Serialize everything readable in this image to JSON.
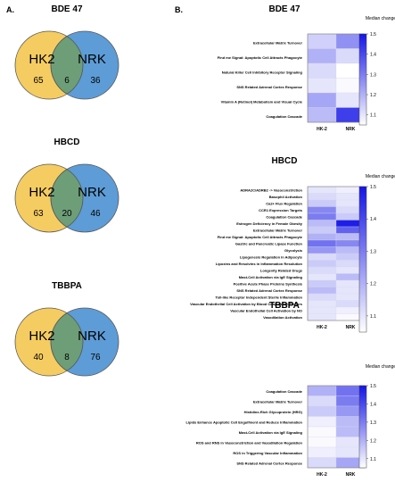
{
  "panel_a_label": "A.",
  "panel_b_label": "B.",
  "venns": [
    {
      "title": "BDE 47",
      "left_label": "HK2",
      "right_label": "NRK",
      "left_only": "65",
      "overlap": "6",
      "right_only": "36"
    },
    {
      "title": "HBCD",
      "left_label": "HK2",
      "right_label": "NRK",
      "left_only": "63",
      "overlap": "20",
      "right_only": "46"
    },
    {
      "title": "TBBPA",
      "left_label": "HK2",
      "right_label": "NRK",
      "left_only": "40",
      "overlap": "8",
      "right_only": "76"
    }
  ],
  "colors": {
    "hk2_circle": "#f5cc62",
    "nrk_circle": "#5d9cd6",
    "overlap": "#6d9e78",
    "heat_low": "#ffffff",
    "heat_high": "#1414e6"
  },
  "chart_data": [
    {
      "type": "heatmap",
      "title": "BDE 47",
      "columns": [
        "HK-2",
        "NRK"
      ],
      "rows": [
        "Extracellular Matrix Turnover",
        "Find me Signal: Apoptotic Cell Attracts Phagocyte",
        "Natural Killer Cell Inhibitory Receptor Signaling",
        "SNS Related Adrenal Cortex Response",
        "Vitamin A (Retinol) Metabolism and Visual Cycle",
        "Coagulation Cascade"
      ],
      "values": [
        [
          1.14,
          1.26
        ],
        [
          1.2,
          1.12
        ],
        [
          1.12,
          1.05
        ],
        [
          1.1,
          1.06
        ],
        [
          1.22,
          1.1
        ],
        [
          1.18,
          1.42
        ]
      ],
      "colorbar_label": "Median change",
      "colorbar_ticks": [
        "1.5",
        "1.4",
        "1.3",
        "1.2",
        "1.1"
      ],
      "range": [
        1.05,
        1.5
      ]
    },
    {
      "type": "heatmap",
      "title": "HBCD",
      "columns": [
        "HK-2",
        "NRK"
      ],
      "rows": [
        "ADRA2C/ADRB2 -> Vasoconstriction",
        "Basophil Activation",
        "Ca2+ Flux Regulation",
        "CCR1 Expression Targets",
        "Coagulation Cascade",
        "Estrogen Deficiency in Female Obesity",
        "Extracellular Matrix Turnover",
        "Find me Signal: Apoptotic Cell Attracts Phagocyte",
        "Gastric and Pancreatic Lipase Function",
        "Glycolysis",
        "Lipogenesis Regulation in Adipocyte",
        "Lipoxins and Resolvins in Inflammation Resolution",
        "Longevity Related Drugs",
        "Mast-Cell Activation via IgE Signaling",
        "Positive Acute Phase Proteins Synthesis",
        "SNS Related Adrenal Cortex Response",
        "Toll-like Receptor Independent Sterile Inflammation",
        "Vascular Endothelial Cell Activation by Blood Coagulation Factors",
        "Vascular Endothelial Cell Activation by NO",
        "Vasodilation Activation"
      ],
      "values": [
        [
          1.1,
          1.08
        ],
        [
          1.12,
          1.1
        ],
        [
          1.15,
          1.1
        ],
        [
          1.28,
          1.12
        ],
        [
          1.3,
          1.15
        ],
        [
          1.18,
          1.48
        ],
        [
          1.15,
          1.35
        ],
        [
          1.2,
          1.18
        ],
        [
          1.32,
          1.28
        ],
        [
          1.25,
          1.18
        ],
        [
          1.12,
          1.15
        ],
        [
          1.15,
          1.12
        ],
        [
          1.12,
          1.1
        ],
        [
          1.1,
          1.18
        ],
        [
          1.15,
          1.1
        ],
        [
          1.18,
          1.1
        ],
        [
          1.12,
          1.1
        ],
        [
          1.1,
          1.12
        ],
        [
          1.1,
          1.08
        ],
        [
          1.1,
          1.06
        ]
      ],
      "colorbar_label": "Median change",
      "colorbar_ticks": [
        "1.5",
        "1.4",
        "1.3",
        "1.2",
        "1.1"
      ],
      "range": [
        1.05,
        1.5
      ]
    },
    {
      "type": "heatmap",
      "title": "TBBPA",
      "columns": [
        "HK-2",
        "NRK"
      ],
      "rows": [
        "Coagulation Cascade",
        "Extracellular Matrix Turnover",
        "Histidine-Rich Glycoprotein (HRG)",
        "Lipids Enhance Apoptotic Cell Engulfment and Reduce Inflammation",
        "Mast-Cell Activation via IgE Signaling",
        "ROS and RNS in Vasoconstriction and Vasodilation Regulation",
        "ROS in Triggering Vascular Inflammation",
        "SNS Related Adrenal Cortex Response"
      ],
      "values": [
        [
          1.2,
          1.32
        ],
        [
          1.12,
          1.3
        ],
        [
          1.15,
          1.25
        ],
        [
          1.08,
          1.18
        ],
        [
          1.06,
          1.18
        ],
        [
          1.06,
          1.1
        ],
        [
          1.08,
          1.1
        ],
        [
          1.12,
          1.22
        ]
      ],
      "colorbar_label": "Median change",
      "colorbar_ticks": [
        "1.5",
        "1.4",
        "1.3",
        "1.2",
        "1.1"
      ],
      "range": [
        1.05,
        1.5
      ]
    }
  ]
}
